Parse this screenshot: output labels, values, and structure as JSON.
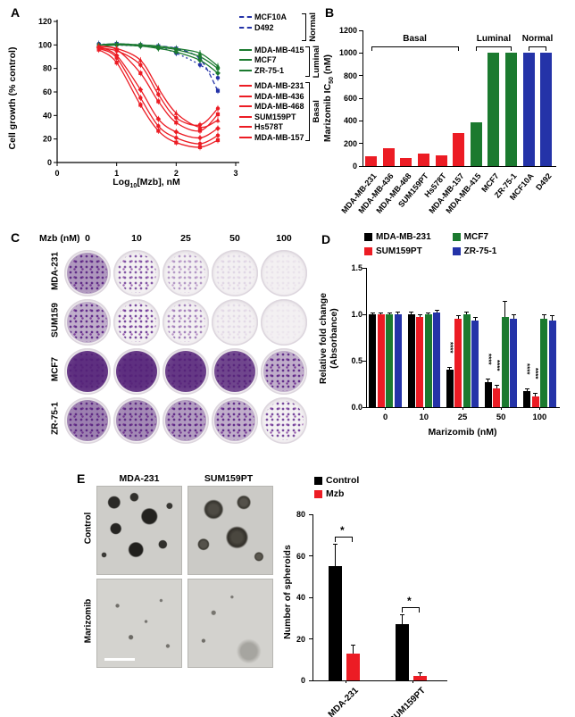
{
  "panel_a": {
    "letter": "A",
    "ylabel": "Cell growth (% control)",
    "xlabel_parts": [
      "Log",
      "10",
      "[Mzb], nM"
    ]
  },
  "panel_b": {
    "letter": "B",
    "ylabel_parts": [
      "Marizomib IC",
      "50",
      " (nM)"
    ]
  },
  "panel_c": {
    "letter": "C",
    "header": "Mzb (nM)"
  },
  "panel_d": {
    "letter": "D",
    "ylabel_lines": [
      "Relative fold change",
      "(Absorbance)"
    ],
    "xlabel": "Marizomib (nM)"
  },
  "panel_e": {
    "letter": "E",
    "col_headers": [
      "MDA-231",
      "SUM159PT"
    ],
    "row_labels": [
      "Control",
      "Marizomib"
    ],
    "ylabel": "Number of spheroids"
  },
  "chart_data": [
    {
      "id": "A",
      "type": "line",
      "xlabel": "Log10[Mzb], nM",
      "ylabel": "Cell growth (% control)",
      "xlim": [
        0,
        3
      ],
      "ylim": [
        0,
        120
      ],
      "xticks": [
        0,
        1,
        2,
        3
      ],
      "yticks": [
        0,
        20,
        40,
        60,
        80,
        100,
        120
      ],
      "x": [
        0.7,
        1.0,
        1.4,
        1.7,
        2.0,
        2.4,
        2.7
      ],
      "legend_groups": [
        "Normal",
        "Luminal",
        "Basal"
      ],
      "series": [
        {
          "name": "MCF10A",
          "group": "Normal",
          "color": "#2433a8",
          "dash": "5,3",
          "marker": "square",
          "values": [
            100,
            101,
            100,
            99,
            97,
            88,
            61
          ]
        },
        {
          "name": "D492",
          "group": "Normal",
          "color": "#2433a8",
          "dash": "2,3",
          "marker": "circle",
          "values": [
            101,
            100,
            99,
            98,
            93,
            83,
            72
          ]
        },
        {
          "name": "MDA-MB-415",
          "group": "Luminal",
          "color": "#1b7a2f",
          "dash": "",
          "marker": "triangle",
          "values": [
            100,
            101,
            100,
            99,
            97,
            93,
            82
          ]
        },
        {
          "name": "MCF7",
          "group": "Luminal",
          "color": "#1b7a2f",
          "dash": "",
          "marker": "circle",
          "values": [
            100,
            100,
            100,
            98,
            96,
            90,
            80
          ]
        },
        {
          "name": "ZR-75-1",
          "group": "Luminal",
          "color": "#1b7a2f",
          "dash": "",
          "marker": "diamond",
          "values": [
            98,
            100,
            99,
            97,
            94,
            87,
            76
          ]
        },
        {
          "name": "MDA-MB-231",
          "group": "Basal",
          "color": "#ec1c24",
          "dash": "",
          "marker": "circle",
          "values": [
            97,
            95,
            83,
            58,
            38,
            32,
            46
          ]
        },
        {
          "name": "MDA-MB-436",
          "group": "Basal",
          "color": "#ec1c24",
          "dash": "",
          "marker": "square",
          "values": [
            98,
            96,
            76,
            52,
            34,
            27,
            41
          ]
        },
        {
          "name": "MDA-MB-468",
          "group": "Basal",
          "color": "#ec1c24",
          "dash": "",
          "marker": "triangle",
          "values": [
            99,
            97,
            87,
            63,
            42,
            30,
            36
          ]
        },
        {
          "name": "SUM159PT",
          "group": "Basal",
          "color": "#ec1c24",
          "dash": "",
          "marker": "diamond",
          "values": [
            98,
            91,
            62,
            37,
            26,
            21,
            29
          ]
        },
        {
          "name": "Hs578T",
          "group": "Basal",
          "color": "#ec1c24",
          "dash": "",
          "marker": "circle",
          "values": [
            97,
            89,
            55,
            31,
            21,
            16,
            23
          ]
        },
        {
          "name": "MDA-MB-157",
          "group": "Basal",
          "color": "#ec1c24",
          "dash": "",
          "marker": "square",
          "values": [
            96,
            85,
            49,
            27,
            17,
            13,
            19
          ]
        }
      ]
    },
    {
      "id": "B",
      "type": "bar",
      "ylabel": "Marizomib IC50 (nM)",
      "ylim": [
        0,
        1200
      ],
      "yticks": [
        0,
        200,
        400,
        600,
        800,
        1000,
        1200
      ],
      "categories": [
        "MDA-MB-231",
        "MDA-MB-436",
        "MDA-MB-468",
        "SUM159PT",
        "Hs578T",
        "MDA-MB-157",
        "MDA-MB-415",
        "MCF7",
        "ZR-75-1",
        "MCF10A",
        "D492"
      ],
      "values": [
        90,
        160,
        70,
        110,
        95,
        290,
        385,
        1000,
        1000,
        1000,
        1000
      ],
      "colors": [
        "#ec1c24",
        "#ec1c24",
        "#ec1c24",
        "#ec1c24",
        "#ec1c24",
        "#ec1c24",
        "#1b7a2f",
        "#1b7a2f",
        "#1b7a2f",
        "#2433a8",
        "#2433a8"
      ],
      "groups": [
        {
          "label": "Basal",
          "from": 0,
          "to": 5
        },
        {
          "label": "Luminal",
          "from": 6,
          "to": 8
        },
        {
          "label": "Normal",
          "from": 9,
          "to": 10
        }
      ]
    },
    {
      "id": "C",
      "type": "table",
      "title": "Mzb (nM)",
      "doses": [
        "0",
        "10",
        "25",
        "50",
        "100"
      ],
      "rows": [
        {
          "name": "MDA-231",
          "intensity": [
            0.75,
            0.5,
            0.28,
            0.08,
            0.04
          ]
        },
        {
          "name": "SUM159",
          "intensity": [
            0.7,
            0.55,
            0.35,
            0.07,
            0.03
          ]
        },
        {
          "name": "MCF7",
          "intensity": [
            0.98,
            0.98,
            0.96,
            0.93,
            0.7
          ]
        },
        {
          "name": "ZR-75-1",
          "intensity": [
            0.8,
            0.78,
            0.74,
            0.7,
            0.55
          ]
        }
      ]
    },
    {
      "id": "D",
      "type": "grouped-bar",
      "ylabel": "Relative fold change (Absorbance)",
      "xlabel": "Marizomib (nM)",
      "ylim": [
        0,
        1.5
      ],
      "yticks": [
        0,
        0.5,
        1.0,
        1.5
      ],
      "ytick_labels": [
        "0.0",
        "0.5",
        "1.0",
        "1.5"
      ],
      "categories": [
        "0",
        "10",
        "25",
        "50",
        "100"
      ],
      "series": [
        {
          "name": "MDA-MB-231",
          "color": "#000000",
          "values": [
            1.0,
            1.0,
            0.4,
            0.27,
            0.17
          ],
          "err": [
            0.02,
            0.03,
            0.03,
            0.04,
            0.03
          ],
          "sig": [
            "",
            "",
            "****",
            "****",
            "****"
          ]
        },
        {
          "name": "SUM159PT",
          "color": "#ec1c24",
          "values": [
            1.0,
            0.97,
            0.95,
            0.2,
            0.12
          ],
          "err": [
            0.02,
            0.03,
            0.04,
            0.04,
            0.03
          ],
          "sig": [
            "",
            "",
            "",
            "****",
            "****"
          ]
        },
        {
          "name": "MCF7",
          "color": "#1b7a2f",
          "values": [
            1.0,
            1.0,
            1.0,
            0.97,
            0.95
          ],
          "err": [
            0.02,
            0.02,
            0.03,
            0.17,
            0.05
          ],
          "sig": [
            "",
            "",
            "",
            "",
            ""
          ]
        },
        {
          "name": "ZR-75-1",
          "color": "#2433a8",
          "values": [
            1.0,
            1.02,
            0.93,
            0.95,
            0.93
          ],
          "err": [
            0.03,
            0.03,
            0.04,
            0.05,
            0.06
          ],
          "sig": [
            "",
            "",
            "",
            "",
            ""
          ]
        }
      ]
    },
    {
      "id": "E",
      "type": "grouped-bar",
      "ylabel": "Number of spheroids",
      "ylim": [
        0,
        80
      ],
      "yticks": [
        0,
        20,
        40,
        60,
        80
      ],
      "categories": [
        "MDA-231",
        "SUM159PT"
      ],
      "series": [
        {
          "name": "Control",
          "color": "#000000",
          "values": [
            55,
            27
          ],
          "err": [
            11,
            5
          ]
        },
        {
          "name": "Mzb",
          "color": "#ec1c24",
          "values": [
            13,
            2
          ],
          "err": [
            4,
            2
          ]
        }
      ],
      "sig": [
        "*",
        "*"
      ]
    }
  ]
}
